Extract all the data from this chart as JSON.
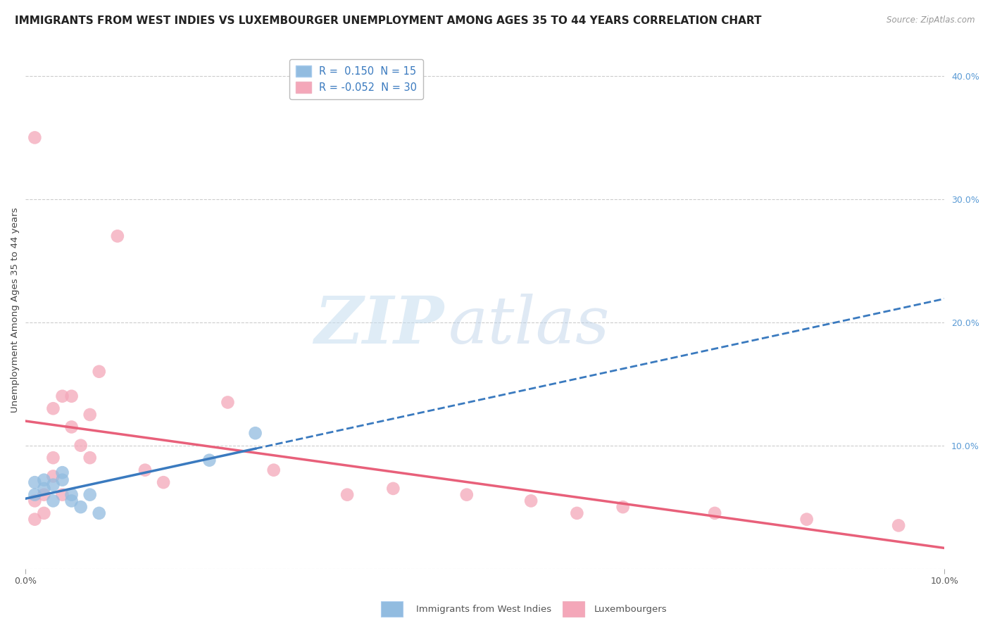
{
  "title": "IMMIGRANTS FROM WEST INDIES VS LUXEMBOURGER UNEMPLOYMENT AMONG AGES 35 TO 44 YEARS CORRELATION CHART",
  "source": "Source: ZipAtlas.com",
  "ylabel": "Unemployment Among Ages 35 to 44 years",
  "xlim": [
    0.0,
    0.1
  ],
  "ylim": [
    0.0,
    0.42
  ],
  "ytick_vals_right": [
    0.0,
    0.1,
    0.2,
    0.3,
    0.4
  ],
  "blue_color": "#92bce0",
  "pink_color": "#f4a7b9",
  "blue_line_color": "#3a7abf",
  "pink_line_color": "#e8607a",
  "R_blue": 0.15,
  "N_blue": 15,
  "R_pink": -0.052,
  "N_pink": 30,
  "watermark_zip": "ZIP",
  "watermark_atlas": "atlas",
  "blue_scatter_x": [
    0.001,
    0.001,
    0.002,
    0.002,
    0.003,
    0.003,
    0.004,
    0.004,
    0.005,
    0.005,
    0.006,
    0.007,
    0.008,
    0.02,
    0.025
  ],
  "blue_scatter_y": [
    0.06,
    0.07,
    0.065,
    0.072,
    0.068,
    0.055,
    0.072,
    0.078,
    0.06,
    0.055,
    0.05,
    0.06,
    0.045,
    0.088,
    0.11
  ],
  "pink_scatter_x": [
    0.001,
    0.001,
    0.001,
    0.002,
    0.002,
    0.003,
    0.003,
    0.003,
    0.004,
    0.004,
    0.005,
    0.005,
    0.006,
    0.007,
    0.007,
    0.008,
    0.01,
    0.013,
    0.015,
    0.022,
    0.027,
    0.035,
    0.04,
    0.048,
    0.055,
    0.06,
    0.065,
    0.075,
    0.085,
    0.095
  ],
  "pink_scatter_y": [
    0.04,
    0.055,
    0.35,
    0.045,
    0.06,
    0.075,
    0.09,
    0.13,
    0.06,
    0.14,
    0.14,
    0.115,
    0.1,
    0.09,
    0.125,
    0.16,
    0.27,
    0.08,
    0.07,
    0.135,
    0.08,
    0.06,
    0.065,
    0.06,
    0.055,
    0.045,
    0.05,
    0.045,
    0.04,
    0.035
  ],
  "background_color": "#ffffff",
  "grid_color": "#cccccc",
  "title_fontsize": 11,
  "axis_label_fontsize": 9.5,
  "tick_fontsize": 9,
  "legend_text_color": "#3a7abf"
}
